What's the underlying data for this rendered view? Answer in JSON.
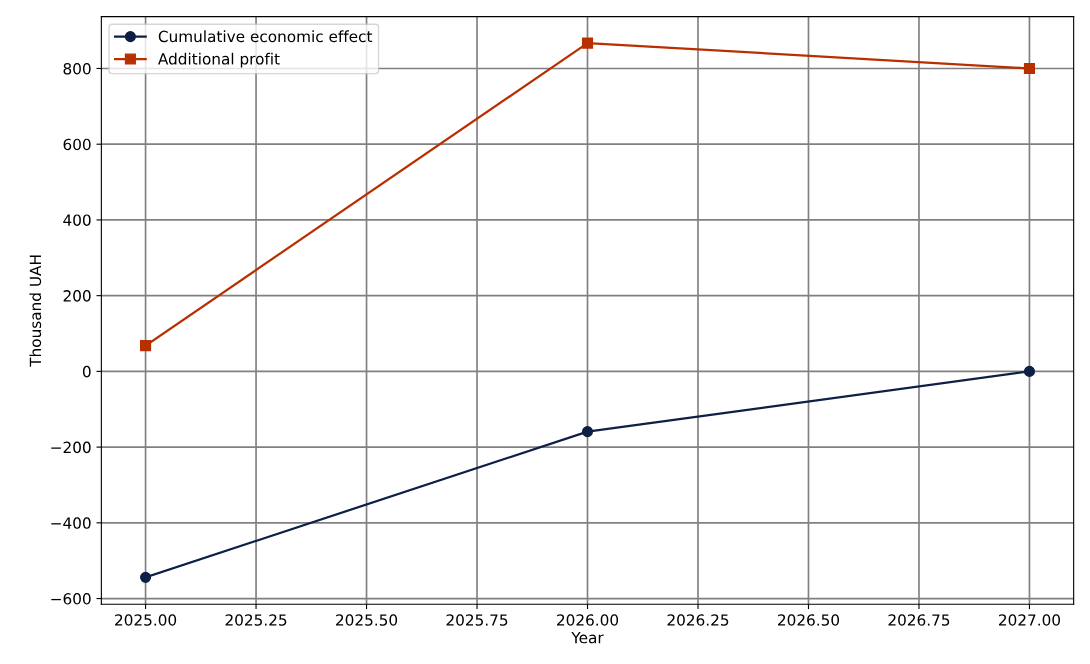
{
  "chart_data": {
    "type": "line",
    "xlabel": "Year",
    "ylabel": "Thousand UAH",
    "x": [
      2025,
      2026,
      2027
    ],
    "series": [
      {
        "name": "Cumulative economic effect",
        "color": "#0d1f45",
        "marker": "circle",
        "values": [
          -544,
          -159,
          0
        ]
      },
      {
        "name": "Additional profit",
        "color": "#b83000",
        "marker": "square",
        "values": [
          68,
          867,
          800
        ]
      }
    ],
    "xlim": [
      2024.9,
      2027.1
    ],
    "xticks": [
      {
        "value": 2025,
        "label": "2025.00"
      },
      {
        "value": 2025.25,
        "label": "2025.25"
      },
      {
        "value": 2025.5,
        "label": "2025.50"
      },
      {
        "value": 2025.75,
        "label": "2025.75"
      },
      {
        "value": 2026,
        "label": "2026.00"
      },
      {
        "value": 2026.25,
        "label": "2026.25"
      },
      {
        "value": 2026.5,
        "label": "2026.50"
      },
      {
        "value": 2026.75,
        "label": "2026.75"
      },
      {
        "value": 2027,
        "label": "2027.00"
      }
    ],
    "ylim": [
      -615,
      937
    ],
    "yticks": [
      {
        "value": -600,
        "label": "−600"
      },
      {
        "value": -400,
        "label": "−400"
      },
      {
        "value": -200,
        "label": "−200"
      },
      0,
      200,
      400,
      600,
      800
    ],
    "grid": true,
    "legend": "top left",
    "line_style": "solid"
  }
}
